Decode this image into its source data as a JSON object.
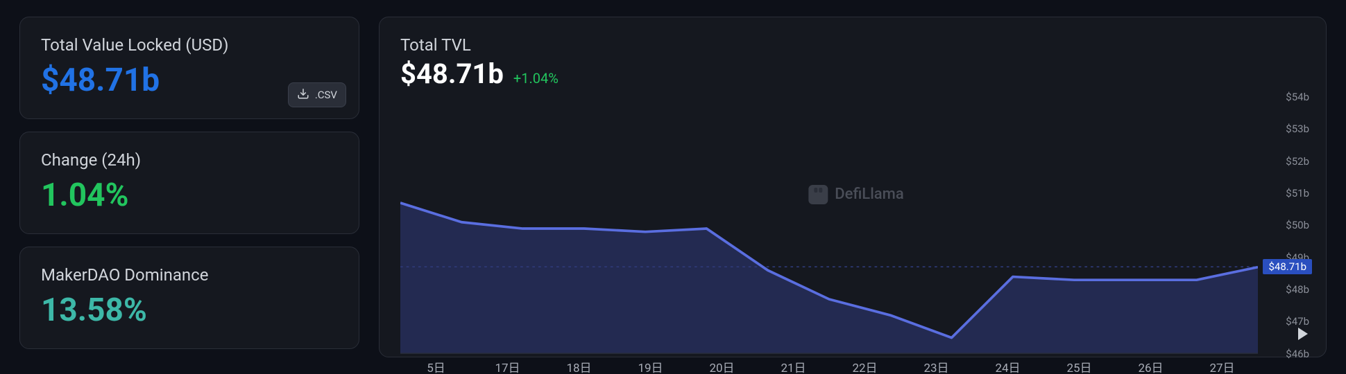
{
  "colors": {
    "bg": "#0d1018",
    "panel": "#15181f",
    "border": "#2a2e38",
    "text": "#d1d5db",
    "muted": "#8b8f99",
    "blue": "#2172e5",
    "green": "#22c55e",
    "teal": "#3db8a8",
    "line": "#4a5fd6",
    "area": "#2f3a7a",
    "refline": "#4a5fd6",
    "badge": "#2a4fbf"
  },
  "sidebar": {
    "tvl": {
      "label": "Total Value Locked (USD)",
      "value": "$48.71b",
      "csv_label": ".CSV"
    },
    "change": {
      "label": "Change (24h)",
      "value": "1.04%"
    },
    "dominance": {
      "label": "MakerDAO Dominance",
      "value": "13.58%"
    }
  },
  "chart": {
    "title": "Total TVL",
    "value": "$48.71b",
    "change": "+1.04%",
    "watermark": "DefiLlama",
    "type": "area",
    "y": {
      "min": 46,
      "max": 54,
      "ticks": [
        54,
        53,
        52,
        51,
        50,
        49,
        48,
        47,
        46
      ],
      "tick_labels": [
        "$54b",
        "$53b",
        "$52b",
        "$51b",
        "$50b",
        "$49b",
        "$48b",
        "$47b",
        "$46b"
      ],
      "ref_value": 48.71,
      "ref_label": "$48.71b"
    },
    "x": {
      "labels": [
        "5日",
        "17日",
        "18日",
        "19日",
        "20日",
        "21日",
        "22日",
        "23日",
        "24日",
        "25日",
        "26日",
        "27日"
      ]
    },
    "series": {
      "values": [
        50.7,
        50.1,
        49.9,
        49.9,
        49.8,
        49.9,
        48.6,
        47.7,
        47.2,
        46.5,
        48.4,
        48.3,
        48.3,
        48.3,
        48.7
      ],
      "line_color": "#5a6ee0",
      "line_width": 3,
      "fill_color": "#2f3a7a",
      "fill_opacity": 0.55
    }
  }
}
